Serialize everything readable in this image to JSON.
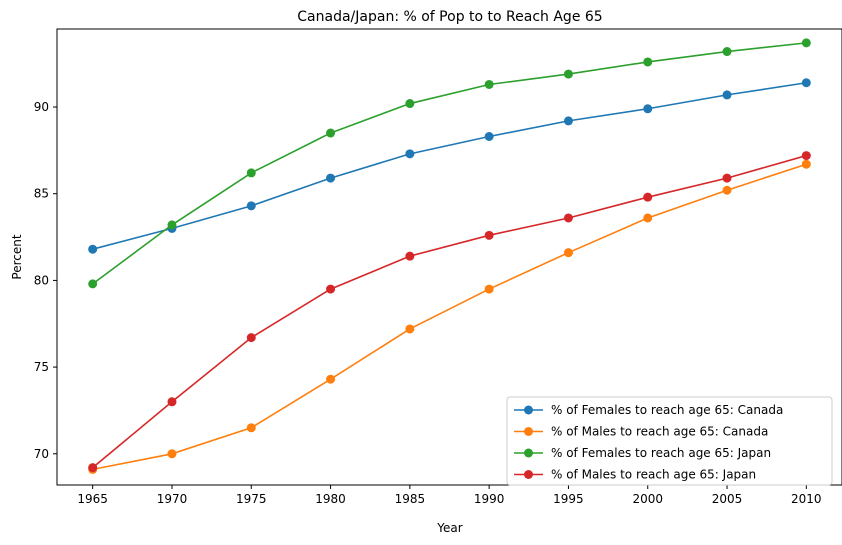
{
  "chart_data": {
    "type": "line",
    "title": "Canada/Japan: % of Pop to to Reach Age 65",
    "xlabel": "Year",
    "ylabel": "Percent",
    "x": [
      1965,
      1970,
      1975,
      1980,
      1985,
      1990,
      1995,
      2000,
      2005,
      2010
    ],
    "xlim": [
      1962.75,
      2012.25
    ],
    "ylim": [
      68.2,
      94.5
    ],
    "yticks": [
      70,
      75,
      80,
      85,
      90
    ],
    "legend_position": "lower-right",
    "grid": false,
    "series": [
      {
        "name": "% of Females to reach age 65: Canada",
        "color": "#1f77b4",
        "values": [
          81.8,
          83.0,
          84.3,
          85.9,
          87.3,
          88.3,
          89.2,
          89.9,
          90.7,
          91.4
        ]
      },
      {
        "name": "% of Males to reach age 65: Canada",
        "color": "#ff7f0e",
        "values": [
          69.1,
          70.0,
          71.5,
          74.3,
          77.2,
          79.5,
          81.6,
          83.6,
          85.2,
          86.7
        ]
      },
      {
        "name": "% of Females to reach age 65: Japan",
        "color": "#2ca02c",
        "values": [
          79.8,
          83.2,
          86.2,
          88.5,
          90.2,
          91.3,
          91.9,
          92.6,
          93.2,
          93.7
        ]
      },
      {
        "name": "% of Males to reach age 65: Japan",
        "color": "#d62728",
        "values": [
          69.2,
          73.0,
          76.7,
          79.5,
          81.4,
          82.6,
          83.6,
          84.8,
          85.9,
          87.2
        ]
      }
    ]
  }
}
